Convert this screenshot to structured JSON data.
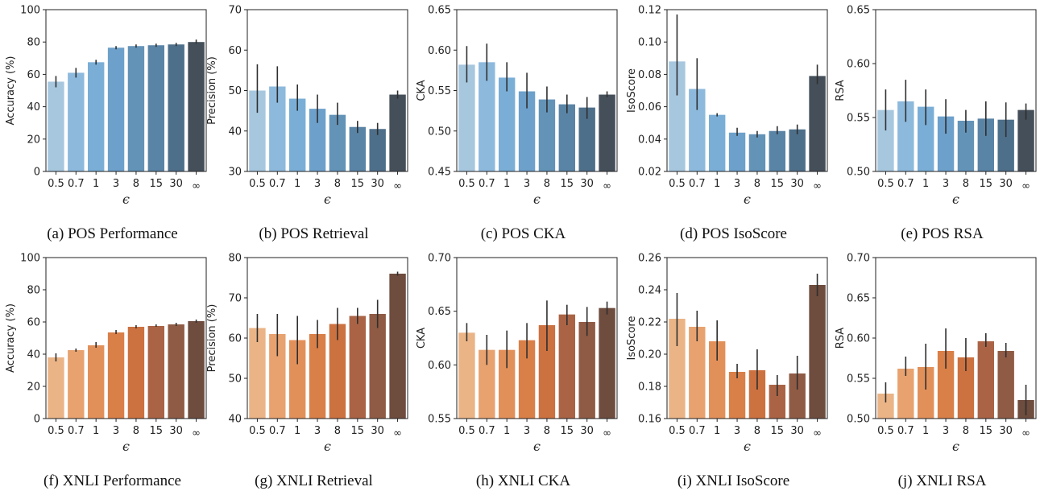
{
  "chart_data": [
    {
      "id": "a",
      "type": "bar",
      "title": "",
      "caption": "(a) POS Performance",
      "xlabel": "ϵ",
      "ylabel": "Accuracy (%)",
      "categories": [
        "0.5",
        "0.7",
        "1",
        "3",
        "8",
        "15",
        "30",
        "∞"
      ],
      "values": [
        55.5,
        61.0,
        67.5,
        76.5,
        77.5,
        78.0,
        78.5,
        80.0
      ],
      "errors": [
        [
          52,
          59
        ],
        [
          58,
          64
        ],
        [
          66,
          69
        ],
        [
          75.5,
          77.5
        ],
        [
          76.5,
          78.5
        ],
        [
          77,
          79
        ],
        [
          77.5,
          79.5
        ],
        [
          79,
          81.5
        ]
      ],
      "ylim": [
        0,
        100
      ],
      "yticks": [
        "0",
        "20",
        "40",
        "60",
        "80",
        "100"
      ],
      "colors": [
        "#a7c7df",
        "#8db9dc",
        "#7aaed6",
        "#6da0ca",
        "#6493b8",
        "#5a84a6",
        "#4e6f8a",
        "#454f59"
      ]
    },
    {
      "id": "b",
      "type": "bar",
      "title": "",
      "caption": "(b) POS Retrieval",
      "xlabel": "ϵ",
      "ylabel": "Precision (%)",
      "categories": [
        "0.5",
        "0.7",
        "1",
        "3",
        "8",
        "15",
        "30",
        "∞"
      ],
      "values": [
        50.0,
        51.0,
        48.0,
        45.5,
        44.0,
        41.0,
        40.5,
        49.0
      ],
      "errors": [
        [
          44.5,
          56.5
        ],
        [
          47,
          56
        ],
        [
          45,
          51.5
        ],
        [
          42,
          49
        ],
        [
          41.5,
          47
        ],
        [
          39.5,
          42.5
        ],
        [
          39,
          42
        ],
        [
          48,
          50
        ]
      ],
      "ylim": [
        30,
        70
      ],
      "yticks": [
        "30",
        "40",
        "50",
        "60",
        "70"
      ],
      "colors": [
        "#a7c7df",
        "#8db9dc",
        "#7aaed6",
        "#6da0ca",
        "#6493b8",
        "#5a84a6",
        "#4e6f8a",
        "#454f59"
      ]
    },
    {
      "id": "c",
      "type": "bar",
      "title": "",
      "caption": "(c) POS CKA",
      "xlabel": "ϵ",
      "ylabel": "CKA",
      "categories": [
        "0.5",
        "0.7",
        "1",
        "3",
        "8",
        "15",
        "30",
        "∞"
      ],
      "values": [
        0.582,
        0.585,
        0.566,
        0.549,
        0.539,
        0.533,
        0.529,
        0.545
      ],
      "errors": [
        [
          0.56,
          0.605
        ],
        [
          0.562,
          0.608
        ],
        [
          0.549,
          0.585
        ],
        [
          0.528,
          0.572
        ],
        [
          0.523,
          0.555
        ],
        [
          0.522,
          0.545
        ],
        [
          0.515,
          0.542
        ],
        [
          0.542,
          0.549
        ]
      ],
      "ylim": [
        0.45,
        0.65
      ],
      "yticks": [
        "0.45",
        "0.50",
        "0.55",
        "0.60",
        "0.65"
      ],
      "colors": [
        "#a7c7df",
        "#8db9dc",
        "#7aaed6",
        "#6da0ca",
        "#6493b8",
        "#5a84a6",
        "#4e6f8a",
        "#454f59"
      ]
    },
    {
      "id": "d",
      "type": "bar",
      "title": "",
      "caption": "(d) POS IsoScore",
      "xlabel": "ϵ",
      "ylabel": "IsoScore",
      "categories": [
        "0.5",
        "0.7",
        "1",
        "3",
        "8",
        "15",
        "30",
        "∞"
      ],
      "values": [
        0.088,
        0.071,
        0.055,
        0.044,
        0.043,
        0.045,
        0.046,
        0.079
      ],
      "errors": [
        [
          0.067,
          0.117
        ],
        [
          0.058,
          0.09
        ],
        [
          0.054,
          0.056
        ],
        [
          0.042,
          0.047
        ],
        [
          0.041,
          0.045
        ],
        [
          0.043,
          0.048
        ],
        [
          0.043,
          0.049
        ],
        [
          0.074,
          0.086
        ]
      ],
      "ylim": [
        0.02,
        0.12
      ],
      "yticks": [
        "0.02",
        "0.04",
        "0.06",
        "0.08",
        "0.10",
        "0.12"
      ],
      "colors": [
        "#a7c7df",
        "#8db9dc",
        "#7aaed6",
        "#6da0ca",
        "#6493b8",
        "#5a84a6",
        "#4e6f8a",
        "#454f59"
      ]
    },
    {
      "id": "e",
      "type": "bar",
      "title": "",
      "caption": "(e) POS RSA",
      "xlabel": "ϵ",
      "ylabel": "RSA",
      "categories": [
        "0.5",
        "0.7",
        "1",
        "3",
        "8",
        "15",
        "30",
        "∞"
      ],
      "values": [
        0.557,
        0.565,
        0.56,
        0.551,
        0.547,
        0.549,
        0.548,
        0.557
      ],
      "errors": [
        [
          0.538,
          0.576
        ],
        [
          0.546,
          0.585
        ],
        [
          0.543,
          0.576
        ],
        [
          0.535,
          0.567
        ],
        [
          0.536,
          0.557
        ],
        [
          0.533,
          0.565
        ],
        [
          0.532,
          0.564
        ],
        [
          0.548,
          0.563
        ]
      ],
      "ylim": [
        0.5,
        0.65
      ],
      "yticks": [
        "0.50",
        "0.55",
        "0.60",
        "0.65"
      ],
      "colors": [
        "#a7c7df",
        "#8db9dc",
        "#7aaed6",
        "#6da0ca",
        "#6493b8",
        "#5a84a6",
        "#4e6f8a",
        "#454f59"
      ]
    },
    {
      "id": "f",
      "type": "bar",
      "title": "",
      "caption": "(f) XNLI Performance",
      "xlabel": "ϵ",
      "ylabel": "Accuracy (%)",
      "categories": [
        "0.5",
        "0.7",
        "1",
        "3",
        "8",
        "15",
        "30",
        "∞"
      ],
      "values": [
        38.0,
        42.5,
        45.5,
        53.5,
        57.0,
        57.5,
        58.5,
        60.5
      ],
      "errors": [
        [
          35.5,
          40.5
        ],
        [
          41.5,
          43.5
        ],
        [
          44,
          47.5
        ],
        [
          52.5,
          55
        ],
        [
          56,
          58
        ],
        [
          57,
          58.5
        ],
        [
          57.5,
          59.5
        ],
        [
          59.5,
          61.5
        ]
      ],
      "ylim": [
        0,
        100
      ],
      "yticks": [
        "0",
        "20",
        "40",
        "60",
        "80",
        "100"
      ],
      "colors": [
        "#eab487",
        "#e8a26f",
        "#e2905a",
        "#d97f48",
        "#cc7140",
        "#aa6445",
        "#8f5b45",
        "#6e4c3e"
      ]
    },
    {
      "id": "g",
      "type": "bar",
      "title": "",
      "caption": "(g) XNLI Retrieval",
      "xlabel": "ϵ",
      "ylabel": "Precision (%)",
      "categories": [
        "0.5",
        "0.7",
        "1",
        "3",
        "8",
        "15",
        "30",
        "∞"
      ],
      "values": [
        62.5,
        61.0,
        59.5,
        61.0,
        63.5,
        65.5,
        66.0,
        76.0
      ],
      "errors": [
        [
          59,
          66
        ],
        [
          55.5,
          66
        ],
        [
          53.5,
          65.5
        ],
        [
          57.5,
          64.5
        ],
        [
          59.5,
          67.5
        ],
        [
          63.5,
          67.5
        ],
        [
          62.5,
          69.5
        ],
        [
          75.5,
          76.5
        ]
      ],
      "ylim": [
        40,
        80
      ],
      "yticks": [
        "40",
        "50",
        "60",
        "70",
        "80"
      ],
      "colors": [
        "#eab487",
        "#e8a26f",
        "#e2905a",
        "#d97f48",
        "#cc7140",
        "#aa6445",
        "#8f5b45",
        "#6e4c3e"
      ]
    },
    {
      "id": "h",
      "type": "bar",
      "title": "",
      "caption": "(h) XNLI CKA",
      "xlabel": "ϵ",
      "ylabel": "CKA",
      "categories": [
        "0.5",
        "0.7",
        "1",
        "3",
        "8",
        "15",
        "30",
        "∞"
      ],
      "values": [
        0.63,
        0.614,
        0.614,
        0.623,
        0.637,
        0.647,
        0.64,
        0.653
      ],
      "errors": [
        [
          0.622,
          0.639
        ],
        [
          0.6,
          0.628
        ],
        [
          0.597,
          0.632
        ],
        [
          0.606,
          0.639
        ],
        [
          0.613,
          0.66
        ],
        [
          0.637,
          0.656
        ],
        [
          0.627,
          0.654
        ],
        [
          0.647,
          0.659
        ]
      ],
      "ylim": [
        0.55,
        0.7
      ],
      "yticks": [
        "0.55",
        "0.60",
        "0.65",
        "0.70"
      ],
      "colors": [
        "#eab487",
        "#e8a26f",
        "#e2905a",
        "#d97f48",
        "#cc7140",
        "#aa6445",
        "#8f5b45",
        "#6e4c3e"
      ]
    },
    {
      "id": "i",
      "type": "bar",
      "title": "",
      "caption": "(i) XNLI IsoScore",
      "xlabel": "ϵ",
      "ylabel": "IsoScore",
      "categories": [
        "0.5",
        "0.7",
        "1",
        "3",
        "8",
        "15",
        "30",
        "∞"
      ],
      "values": [
        0.222,
        0.217,
        0.208,
        0.189,
        0.19,
        0.181,
        0.188,
        0.243
      ],
      "errors": [
        [
          0.205,
          0.238
        ],
        [
          0.208,
          0.227
        ],
        [
          0.196,
          0.221
        ],
        [
          0.185,
          0.194
        ],
        [
          0.178,
          0.203
        ],
        [
          0.174,
          0.187
        ],
        [
          0.178,
          0.199
        ],
        [
          0.236,
          0.25
        ]
      ],
      "ylim": [
        0.16,
        0.26
      ],
      "yticks": [
        "0.16",
        "0.18",
        "0.20",
        "0.22",
        "0.24",
        "0.26"
      ],
      "colors": [
        "#eab487",
        "#e8a26f",
        "#e2905a",
        "#d97f48",
        "#cc7140",
        "#aa6445",
        "#8f5b45",
        "#6e4c3e"
      ]
    },
    {
      "id": "j",
      "type": "bar",
      "title": "",
      "caption": "(j) XNLI RSA",
      "xlabel": "ϵ",
      "ylabel": "RSA",
      "categories": [
        "0.5",
        "0.7",
        "1",
        "3",
        "8",
        "15",
        "30",
        "∞"
      ],
      "values": [
        0.531,
        0.562,
        0.564,
        0.584,
        0.576,
        0.596,
        0.584,
        0.523
      ],
      "errors": [
        [
          0.52,
          0.545
        ],
        [
          0.553,
          0.577
        ],
        [
          0.536,
          0.593
        ],
        [
          0.562,
          0.612
        ],
        [
          0.559,
          0.6
        ],
        [
          0.589,
          0.606
        ],
        [
          0.576,
          0.594
        ],
        [
          0.504,
          0.542
        ]
      ],
      "ylim": [
        0.5,
        0.7
      ],
      "yticks": [
        "0.50",
        "0.55",
        "0.60",
        "0.65",
        "0.70"
      ],
      "colors": [
        "#eab487",
        "#e8a26f",
        "#e2905a",
        "#d97f48",
        "#cc7140",
        "#aa6445",
        "#8f5b45",
        "#6e4c3e"
      ]
    }
  ]
}
